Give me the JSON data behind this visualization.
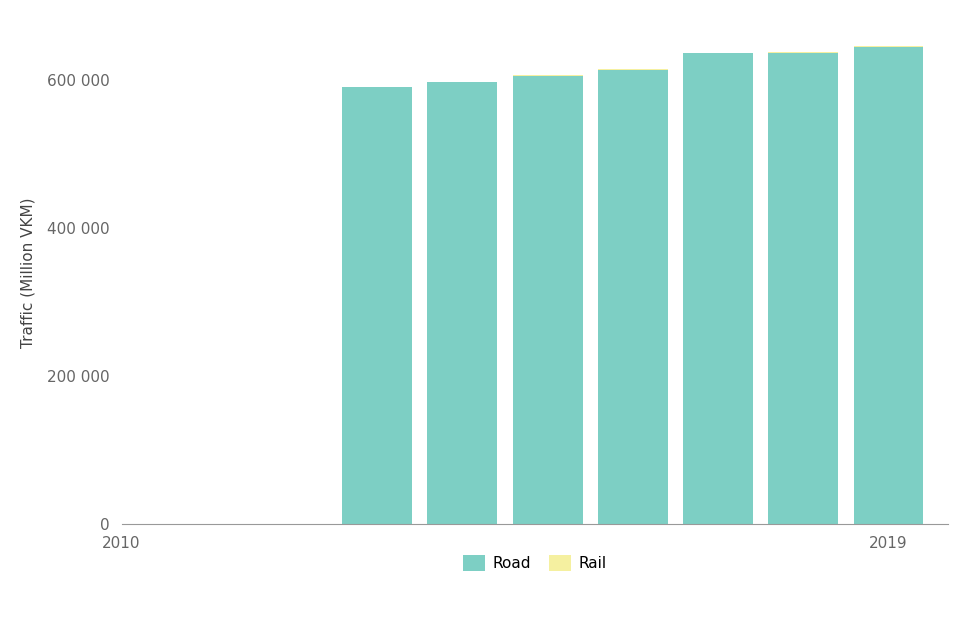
{
  "years": [
    2013,
    2014,
    2015,
    2016,
    2017,
    2018,
    2019
  ],
  "road_values": [
    590000,
    597000,
    606000,
    614000,
    636000,
    637000,
    645000
  ],
  "rail_values": [
    500,
    500,
    500,
    500,
    500,
    500,
    500
  ],
  "road_color": "#7dcfc4",
  "rail_color": "#f5f0a0",
  "ylabel": "Traffic (Million VKM)",
  "xlim_left": 2010.3,
  "xlim_right": 2019.7,
  "ylim": [
    0,
    680000
  ],
  "yticks": [
    0,
    200000,
    400000,
    600000
  ],
  "xticks": [
    2010,
    2019
  ],
  "background_color": "#ffffff",
  "legend_labels": [
    "Road",
    "Rail"
  ],
  "bar_width": 0.82
}
